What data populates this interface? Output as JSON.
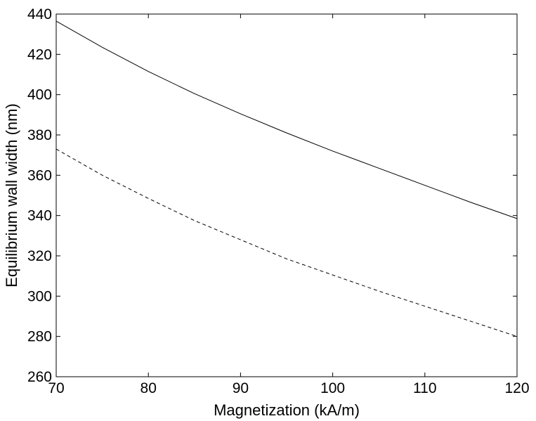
{
  "chart_data": {
    "type": "line",
    "xlabel": "Magnetization (kA/m)",
    "ylabel": "Equilibrium wall width (nm)",
    "xlim": [
      70,
      120
    ],
    "ylim": [
      260,
      440
    ],
    "xticks": [
      70,
      80,
      90,
      100,
      110,
      120
    ],
    "yticks": [
      260,
      280,
      300,
      320,
      340,
      360,
      380,
      400,
      420,
      440
    ],
    "grid": false,
    "legend": "none",
    "series": [
      {
        "style": "solid",
        "color": "#000000",
        "x": [
          70,
          75,
          80,
          85,
          90,
          95,
          100,
          105,
          110,
          115,
          120
        ],
        "y": [
          436.5,
          423.5,
          411.5,
          400.5,
          390.5,
          381,
          372,
          363.5,
          355,
          346.5,
          338.5
        ]
      },
      {
        "style": "dashed",
        "color": "#000000",
        "x": [
          70,
          75,
          80,
          85,
          90,
          95,
          100,
          105,
          110,
          115,
          120
        ],
        "y": [
          373,
          360,
          348.5,
          337.5,
          328,
          318.5,
          310.5,
          302.5,
          295,
          287.5,
          280
        ]
      }
    ]
  }
}
